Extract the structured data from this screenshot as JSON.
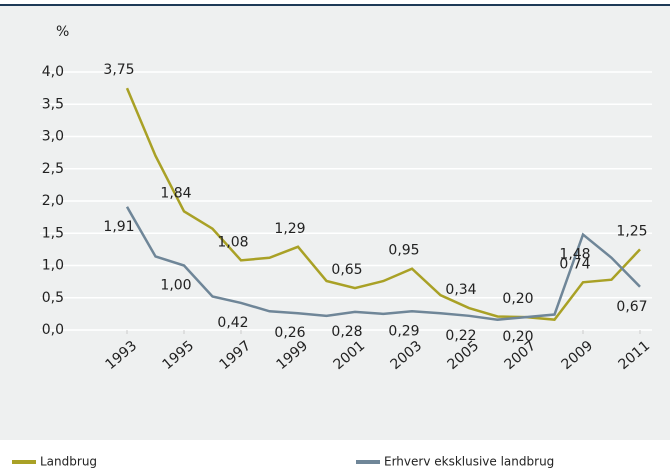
{
  "chart_data": {
    "type": "line",
    "y_unit": "%",
    "x": [
      1993,
      1994,
      1995,
      1996,
      1997,
      1998,
      1999,
      2000,
      2001,
      2002,
      2003,
      2004,
      2005,
      2006,
      2007,
      2008,
      2009,
      2010,
      2011
    ],
    "xlim": [
      1993,
      2011
    ],
    "xticks": [
      1993,
      1995,
      1997,
      1999,
      2001,
      2003,
      2005,
      2007,
      2009,
      2011
    ],
    "ylim": [
      0,
      4
    ],
    "yticks": [
      {
        "value": 0,
        "label": "0,0"
      },
      {
        "value": 0.5,
        "label": "0,5"
      },
      {
        "value": 1,
        "label": "1,0"
      },
      {
        "value": 1.5,
        "label": "1,5"
      },
      {
        "value": 2,
        "label": "2,0"
      },
      {
        "value": 2.5,
        "label": "2,5"
      },
      {
        "value": 3,
        "label": "3,0"
      },
      {
        "value": 3.5,
        "label": "3,5"
      },
      {
        "value": 4,
        "label": "4,0"
      }
    ],
    "grid": true,
    "series": [
      {
        "name": "Landbrug",
        "color": "#a9a126",
        "values": [
          3.75,
          2.7,
          1.84,
          1.57,
          1.08,
          1.12,
          1.29,
          0.76,
          0.65,
          0.76,
          0.95,
          0.54,
          0.34,
          0.21,
          0.2,
          0.16,
          0.74,
          0.78,
          1.25
        ],
        "value_labels": [
          "3,75",
          null,
          "1,84",
          null,
          "1,08",
          null,
          "1,29",
          null,
          "0,65",
          null,
          "0,95",
          null,
          "0,34",
          null,
          "0,20",
          null,
          "0,74",
          null,
          "1,25"
        ]
      },
      {
        "name": "Erhverv eksklusive landbrug",
        "color": "#6f8698",
        "values": [
          1.91,
          1.14,
          1.0,
          0.52,
          0.42,
          0.29,
          0.26,
          0.22,
          0.28,
          0.25,
          0.29,
          0.26,
          0.22,
          0.16,
          0.2,
          0.24,
          1.48,
          1.12,
          0.67
        ],
        "value_labels": [
          "1,91",
          null,
          "1,00",
          null,
          "0,42",
          null,
          "0,26",
          null,
          "0,28",
          null,
          "0,29",
          null,
          "0,22",
          null,
          "0,20",
          null,
          "1,48",
          null,
          "0,67"
        ]
      }
    ]
  }
}
